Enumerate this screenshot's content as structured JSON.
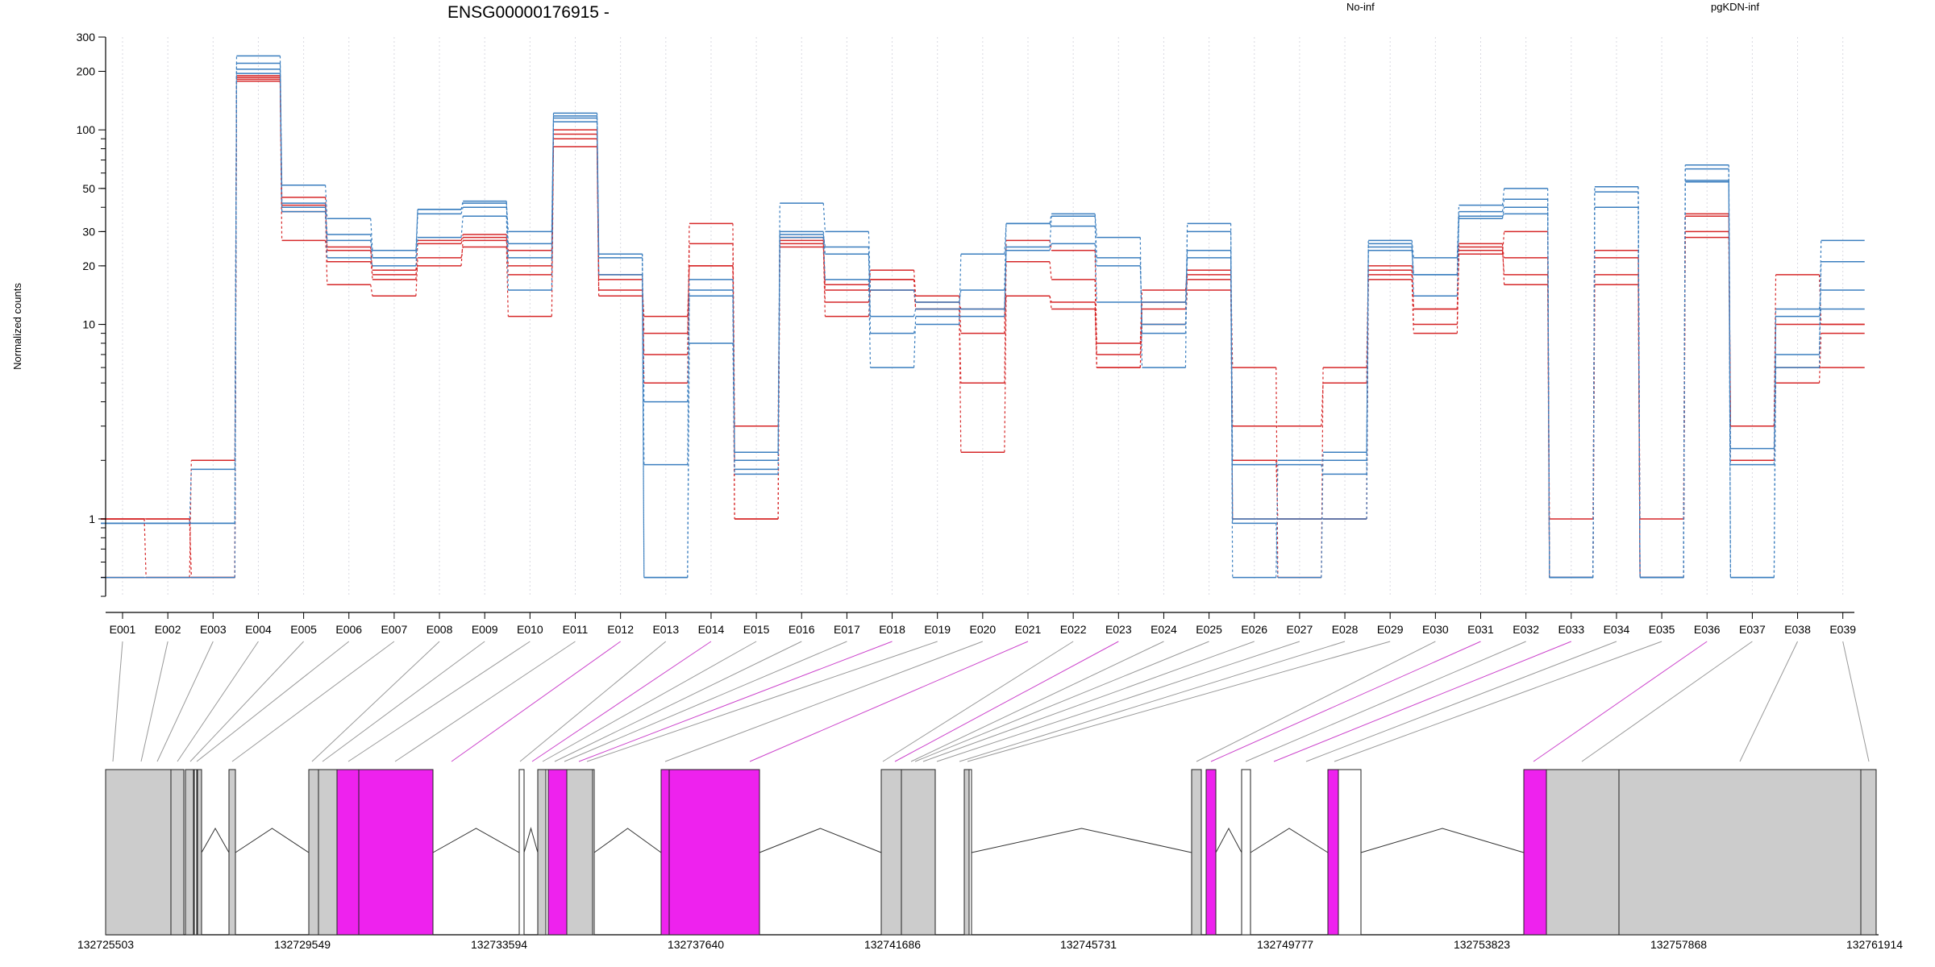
{
  "chart_data": {
    "type": "line",
    "title": "ENSG00000176915 -",
    "ylabel": "Normalized counts",
    "y_scale": "log",
    "ylim": [
      0.4,
      300
    ],
    "y_ticks": [
      1,
      10,
      20,
      30,
      50,
      100,
      200,
      300
    ],
    "grid": "vertical dotted lines at each exon",
    "legend": {
      "placement": "top",
      "entries": [
        {
          "name": "No-inf",
          "color": "#d62728"
        },
        {
          "name": "pgKDN-inf",
          "color": "#3a7ebf"
        }
      ]
    },
    "categories": [
      "E001",
      "E002",
      "E003",
      "E004",
      "E005",
      "E006",
      "E007",
      "E008",
      "E009",
      "E010",
      "E011",
      "E012",
      "E013",
      "E014",
      "E015",
      "E016",
      "E017",
      "E018",
      "E019",
      "E020",
      "E021",
      "E022",
      "E023",
      "E024",
      "E025",
      "E026",
      "E027",
      "E028",
      "E029",
      "E030",
      "E031",
      "E032",
      "E033",
      "E034",
      "E035",
      "E036",
      "E037",
      "E038",
      "E039"
    ],
    "series": [
      {
        "group": "No-inf",
        "values": [
          1,
          1,
          0.5,
          190,
          45,
          25,
          17,
          27,
          29,
          24,
          95,
          18,
          5,
          33,
          3,
          28,
          15,
          19,
          14,
          9,
          27,
          24,
          8,
          15,
          19,
          6,
          0.5,
          6,
          20,
          12,
          24,
          18,
          1,
          24,
          1,
          37,
          3,
          18,
          10
        ]
      },
      {
        "group": "No-inf",
        "values": [
          1,
          0.5,
          2,
          182,
          38,
          16,
          14,
          22,
          25,
          11,
          82,
          15,
          11,
          20,
          1,
          25,
          11,
          15,
          12,
          5,
          21,
          17,
          6,
          12,
          17,
          3,
          3,
          5,
          17,
          9,
          23,
          30,
          0.5,
          16,
          0.5,
          28,
          2,
          5,
          9
        ]
      },
      {
        "group": "No-inf",
        "values": [
          0.5,
          0.5,
          0.5,
          178,
          27,
          21,
          18,
          20,
          27,
          18,
          90,
          14,
          7,
          26,
          2,
          26,
          13,
          17,
          12,
          2.2,
          14,
          12,
          6,
          10,
          15,
          2,
          1,
          1,
          18,
          10,
          26,
          16,
          0.5,
          18,
          0.5,
          30,
          3,
          6,
          6
        ]
      },
      {
        "group": "No-inf",
        "values": [
          1,
          1,
          0.5,
          186,
          41,
          24,
          19,
          26,
          28,
          20,
          100,
          17,
          9,
          20,
          1,
          27,
          16,
          17,
          13,
          12,
          14,
          13,
          7,
          13,
          18,
          1,
          1,
          1,
          19,
          12,
          25,
          22,
          0.5,
          22,
          0.5,
          36,
          3,
          10,
          10
        ]
      },
      {
        "group": "pgKDN-inf",
        "values": [
          0.95,
          0.95,
          0.95,
          240,
          52,
          35,
          24,
          39,
          42,
          30,
          122,
          23,
          4,
          15,
          1.8,
          42,
          30,
          15,
          13,
          15,
          33,
          37,
          28,
          6,
          33,
          1,
          1,
          1,
          27,
          22,
          41,
          50,
          0.5,
          51,
          0.5,
          66,
          1.9,
          7,
          27
        ]
      },
      {
        "group": "pgKDN-inf",
        "values": [
          0.5,
          0.5,
          0.5,
          220,
          42,
          27,
          22,
          39,
          43,
          22,
          115,
          22,
          0.5,
          8,
          2,
          28,
          17,
          6,
          11,
          11,
          25,
          36,
          22,
          9,
          22,
          0.95,
          0.5,
          2.2,
          24,
          18,
          38,
          44,
          0.5,
          51,
          0.5,
          63,
          0.5,
          6,
          21
        ]
      },
      {
        "group": "pgKDN-inf",
        "values": [
          0.95,
          0.95,
          0.95,
          205,
          40,
          29,
          22,
          37,
          40,
          26,
          118,
          23,
          1.9,
          17,
          2.2,
          30,
          23,
          9,
          10,
          23,
          33,
          32,
          20,
          10,
          30,
          1.9,
          2,
          2,
          25,
          18,
          35,
          40,
          0.5,
          40,
          0.5,
          55,
          2.3,
          12,
          15
        ]
      },
      {
        "group": "pgKDN-inf",
        "values": [
          0.95,
          0.95,
          1.8,
          195,
          38,
          22,
          20,
          28,
          36,
          15,
          110,
          18,
          0.5,
          14,
          1.7,
          29,
          25,
          11,
          12,
          12,
          24,
          26,
          13,
          13,
          24,
          0.5,
          1.9,
          1.7,
          26,
          14,
          36,
          37,
          0.5,
          48,
          0.5,
          54,
          0.5,
          11,
          12
        ]
      }
    ]
  },
  "gene_model": {
    "coordinate_ticks": [
      "132725503",
      "132729549",
      "132733594",
      "132737640",
      "132741686",
      "132745731",
      "132749777",
      "132753823",
      "132757868",
      "132761914"
    ]
  },
  "colors": {
    "no_inf": "#d62728",
    "pgkdn_inf": "#3a7ebf",
    "exon_gray": "#cccccc",
    "exon_highlight": "#ee22ee",
    "connector_gray": "#999999",
    "connector_highlight": "#cc44cc"
  }
}
